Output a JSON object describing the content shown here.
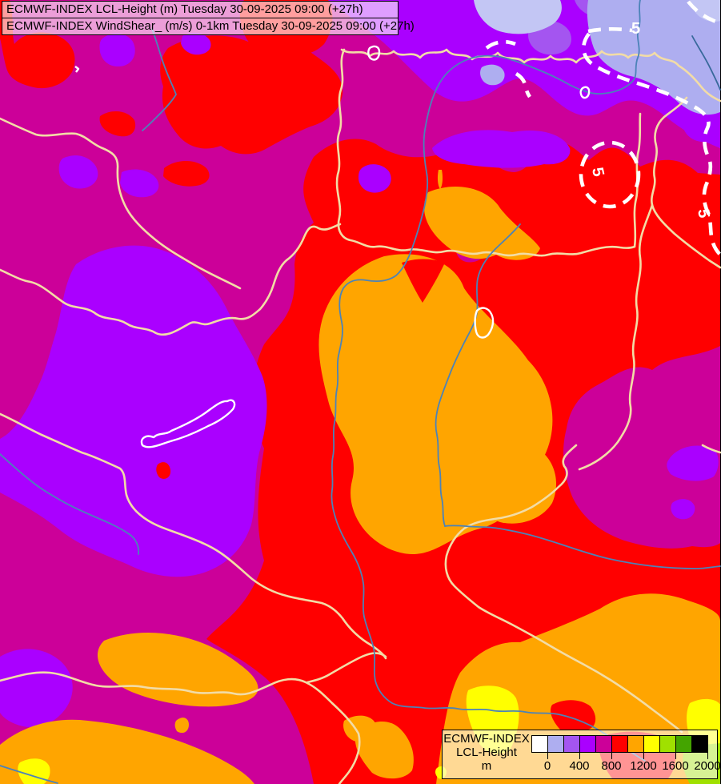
{
  "header": {
    "line1": "ECMWF-INDEX LCL-Height (m) Tuesday 30-09-2025 09:00 (+27h)",
    "line2": "ECMWF-INDEX WindShear_ (m/s) 0-1km Tuesday 30-09-2025 09:00 (+27h)"
  },
  "legend": {
    "title_line1": "ECMWF-INDEX",
    "title_line2": "LCL-Height",
    "unit": "m",
    "tick_labels": [
      "0",
      "400",
      "800",
      "1200",
      "1600",
      "2000"
    ],
    "swatch_colors": [
      "#ffffff",
      "#aeaef0",
      "#a455f0",
      "#aa00ff",
      "#cc0099",
      "#ff0000",
      "#ffa500",
      "#ffff00",
      "#a0e000",
      "#44a400",
      "#000000"
    ]
  },
  "contours": {
    "parameter": "WindShear 0-1km",
    "labels": [
      {
        "text": "5"
      },
      {
        "text": "5"
      },
      {
        "text": "5"
      }
    ]
  },
  "map": {
    "region": "Hungary and surroundings",
    "palette": {
      "magenta": "#cc0099",
      "red": "#ff0000",
      "violet": "#aa00ff",
      "medium_purple": "#a455f0",
      "lavender": "#aeaef0",
      "pale_lavender": "#c3c6f4",
      "orange": "#ffa500",
      "yellow": "#ffff00",
      "yellow_green": "#a0e000",
      "border_line": "#f2dca6",
      "river": "#4c83b8",
      "lake_outline": "#ffffff",
      "contour_line": "#ffffff"
    }
  }
}
